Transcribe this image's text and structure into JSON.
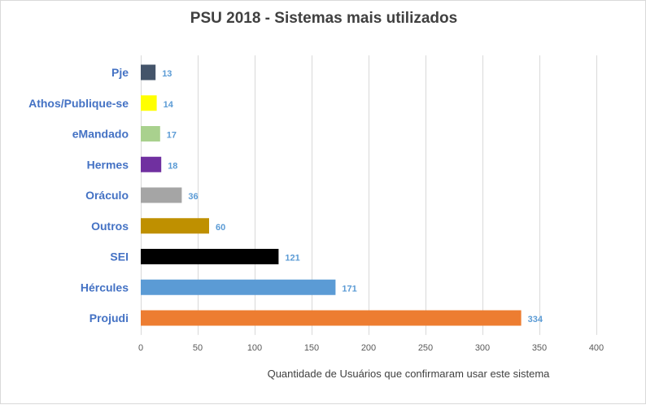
{
  "chart_data": {
    "type": "bar",
    "orientation": "horizontal",
    "title": "PSU 2018 - Sistemas mais utilizados",
    "xlabel": "Quantidade de Usuários que confirmaram usar este sistema",
    "ylabel": "",
    "categories": [
      "Pje",
      "Athos/Publique-se",
      "eMandado",
      "Hermes",
      "Oráculo",
      "Outros",
      "SEI",
      "Hércules",
      "Projudi"
    ],
    "values": [
      13,
      14,
      17,
      18,
      36,
      60,
      121,
      171,
      334
    ],
    "bar_colors": [
      "#44546a",
      "#ffff00",
      "#a9d18e",
      "#7030a0",
      "#a5a5a5",
      "#bf9000",
      "#000000",
      "#5b9bd5",
      "#ed7d31"
    ],
    "xlim": [
      0,
      400
    ],
    "xticks": [
      0,
      50,
      100,
      150,
      200,
      250,
      300,
      350,
      400
    ],
    "grid": "vertical",
    "legend": "none",
    "category_label_color": "#4472c4",
    "data_label_color": "#5b9bd5"
  }
}
